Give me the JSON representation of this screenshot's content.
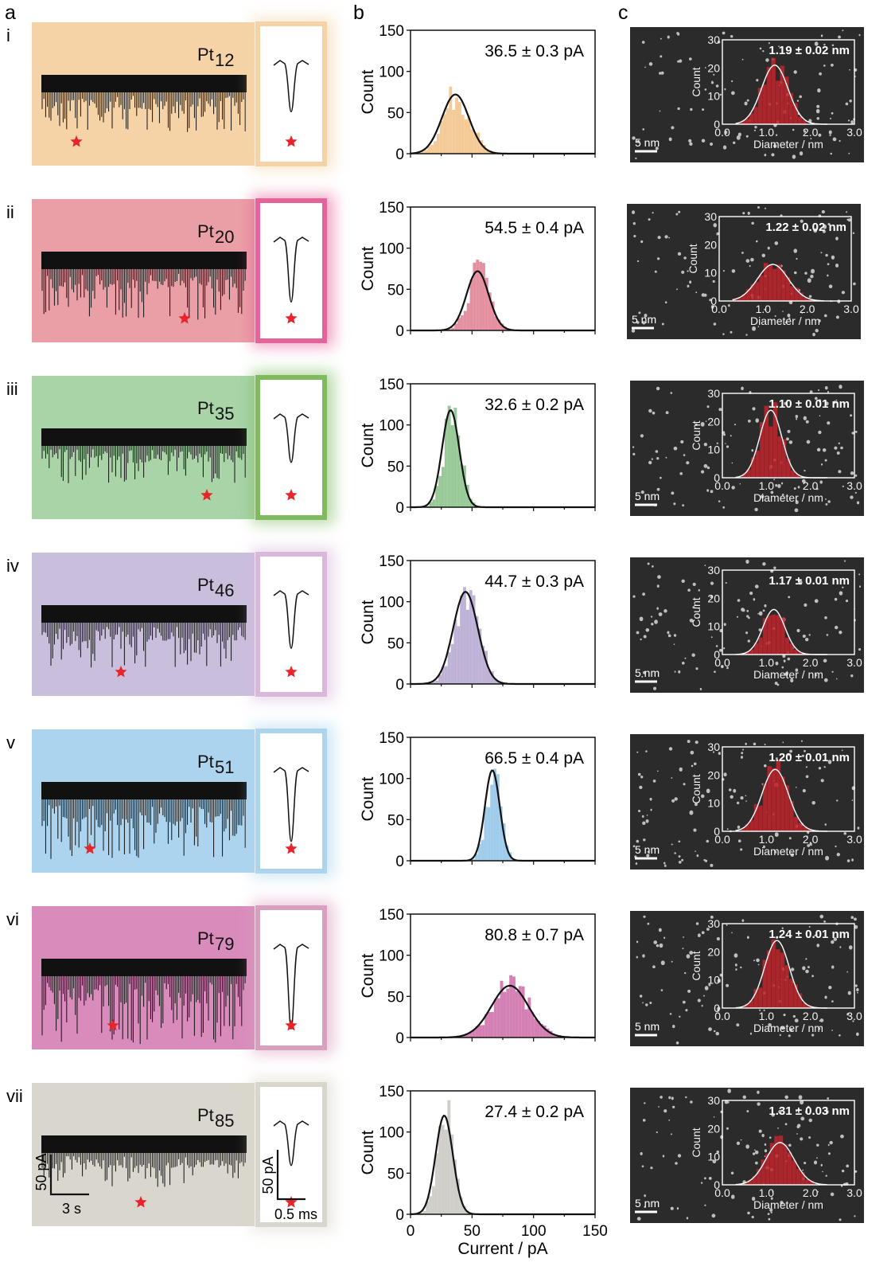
{
  "panel_labels": {
    "a": "a",
    "b": "b",
    "c": "c"
  },
  "colors": {
    "star": "#e8232a",
    "fit_line": "#111111",
    "tem_bg": "#2b2b2b",
    "tem_hist": "#c0262d",
    "tem_fit": "#ffffff"
  },
  "scale_bars": {
    "trace_current": "50 pA",
    "trace_time": "3 s",
    "event_current": "50 pA",
    "event_time": "0.5 ms"
  },
  "rows": [
    {
      "roman": "i",
      "cluster_base": "Pt",
      "cluster_sub": "12",
      "color": "#f5d3a6",
      "hist_color": "#f2c184",
      "accent": "#f5d3a6",
      "hist_annotation": "36.5 ± 0.3 pA",
      "tem_annotation": "1.19 ± 0.02 nm"
    },
    {
      "roman": "ii",
      "cluster_base": "Pt",
      "cluster_sub": "20",
      "color": "#ea9fa6",
      "hist_color": "#e07c90",
      "accent": "#e6629a",
      "hist_annotation": "54.5 ± 0.4 pA",
      "tem_annotation": "1.22 ± 0.02 nm"
    },
    {
      "roman": "iii",
      "cluster_base": "Pt",
      "cluster_sub": "35",
      "color": "#a8d4a8",
      "hist_color": "#86c186",
      "accent": "#7fba5e",
      "hist_annotation": "32.6 ± 0.2 pA",
      "tem_annotation": "1.10 ± 0.01 nm"
    },
    {
      "roman": "iv",
      "cluster_base": "Pt",
      "cluster_sub": "46",
      "color": "#c9bedc",
      "hist_color": "#b4a4d0",
      "accent": "#d9b8dc",
      "hist_annotation": "44.7 ± 0.3 pA",
      "tem_annotation": "1.17 ± 0.01 nm"
    },
    {
      "roman": "v",
      "cluster_base": "Pt",
      "cluster_sub": "51",
      "color": "#acd4ee",
      "hist_color": "#8ec3e6",
      "accent": "#acd4ee",
      "hist_annotation": "66.5 ± 0.4 pA",
      "tem_annotation": "1.20 ± 0.01 nm"
    },
    {
      "roman": "vi",
      "cluster_base": "Pt",
      "cluster_sub": "79",
      "color": "#d98bbb",
      "hist_color": "#cd6aa8",
      "accent": "#d99fbf",
      "hist_annotation": "80.8 ± 0.7 pA",
      "tem_annotation": "1.24 ± 0.01 nm"
    },
    {
      "roman": "vii",
      "cluster_base": "Pt",
      "cluster_sub": "85",
      "color": "#d9d6cd",
      "hist_color": "#c8c6c0",
      "accent": "#d9d6cd",
      "hist_annotation": "27.4 ± 0.2 pA",
      "tem_annotation": "1.31 ± 0.03 nm"
    }
  ],
  "chart_data": [
    {
      "type": "bar",
      "title": "",
      "xlabel": "Current / pA",
      "ylabel": "Count",
      "xlim": [
        0,
        150
      ],
      "ylim": [
        0,
        150
      ],
      "xticks": [
        "0",
        "50",
        "100",
        "150"
      ],
      "yticks": [
        "0",
        "50",
        "100",
        "150"
      ],
      "series": [
        {
          "panel": "i",
          "fit": {
            "mean": 36.5,
            "sigma": 11,
            "amplitude": 72
          }
        },
        {
          "panel": "ii",
          "fit": {
            "mean": 54.5,
            "sigma": 9,
            "amplitude": 72
          }
        },
        {
          "panel": "iii",
          "fit": {
            "mean": 32.6,
            "sigma": 7,
            "amplitude": 118
          }
        },
        {
          "panel": "iv",
          "fit": {
            "mean": 44.7,
            "sigma": 10,
            "amplitude": 112
          }
        },
        {
          "panel": "v",
          "fit": {
            "mean": 66.5,
            "sigma": 6,
            "amplitude": 110
          }
        },
        {
          "panel": "vi",
          "fit": {
            "mean": 80.8,
            "sigma": 15,
            "amplitude": 63
          }
        },
        {
          "panel": "vii",
          "fit": {
            "mean": 27.4,
            "sigma": 7,
            "amplitude": 120
          }
        }
      ]
    },
    {
      "type": "bar",
      "title": "",
      "xlabel": "Diameter / nm",
      "ylabel": "Count",
      "xlim": [
        0,
        3
      ],
      "ylim": [
        0,
        30
      ],
      "xticks": [
        "0.0",
        "1.0",
        "2.0",
        "3.0"
      ],
      "yticks": [
        "0",
        "10",
        "20",
        "30"
      ],
      "scale_label": "5 nm",
      "series": [
        {
          "panel": "i",
          "fit": {
            "mean": 1.19,
            "sigma": 0.3,
            "amplitude": 21
          }
        },
        {
          "panel": "ii",
          "fit": {
            "mean": 1.22,
            "sigma": 0.35,
            "amplitude": 13
          }
        },
        {
          "panel": "iii",
          "fit": {
            "mean": 1.1,
            "sigma": 0.25,
            "amplitude": 24
          }
        },
        {
          "panel": "iv",
          "fit": {
            "mean": 1.17,
            "sigma": 0.25,
            "amplitude": 16
          }
        },
        {
          "panel": "v",
          "fit": {
            "mean": 1.2,
            "sigma": 0.3,
            "amplitude": 22
          }
        },
        {
          "panel": "vi",
          "fit": {
            "mean": 1.24,
            "sigma": 0.28,
            "amplitude": 24
          }
        },
        {
          "panel": "vii",
          "fit": {
            "mean": 1.31,
            "sigma": 0.32,
            "amplitude": 15
          }
        }
      ]
    }
  ]
}
